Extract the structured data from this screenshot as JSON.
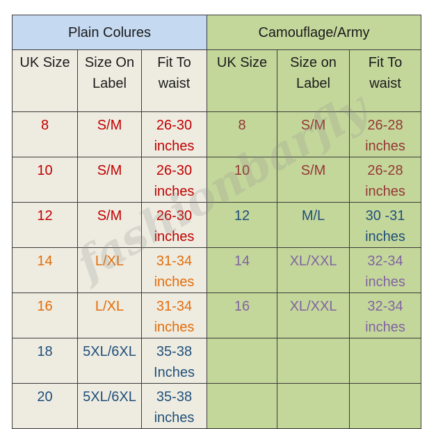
{
  "watermark": "fashionbarfly",
  "sections": {
    "plain": "Plain Colures",
    "camo": "Camouflage/Army"
  },
  "headers": {
    "plain": {
      "uk_size": "UK Size",
      "size_label": "Size On Label",
      "fit_waist": "Fit To waist"
    },
    "camo": {
      "uk_size": "UK Size",
      "size_label": "Size on Label",
      "fit_waist": "Fit To waist"
    }
  },
  "colors": {
    "plain_header_bg": "#c5d9f1",
    "camo_bg": "#c4d79b",
    "plain_bg": "#eeece1",
    "red": "#c00000",
    "brown": "#953735",
    "blue": "#1f4e79",
    "orange": "#e46c0a",
    "purple": "#8064a2"
  },
  "rows": [
    {
      "plain": {
        "uk": "8",
        "label": "S/M",
        "fit": "26-30 inches"
      },
      "camo": {
        "uk": "8",
        "label": "S/M",
        "fit": "26-28 inches"
      }
    },
    {
      "plain": {
        "uk": "10",
        "label": "S/M",
        "fit": "26-30 inches"
      },
      "camo": {
        "uk": "10",
        "label": "S/M",
        "fit": "26-28 inches"
      }
    },
    {
      "plain": {
        "uk": "12",
        "label": "S/M",
        "fit": "26-30 inches"
      },
      "camo": {
        "uk": "12",
        "label": "M/L",
        "fit": "30 -31 inches"
      }
    },
    {
      "plain": {
        "uk": "14",
        "label": "L/XL",
        "fit": "31-34 inches"
      },
      "camo": {
        "uk": "14",
        "label": "XL/XXL",
        "fit": "32-34 inches"
      }
    },
    {
      "plain": {
        "uk": "16",
        "label": "L/XL",
        "fit": "31-34 inches"
      },
      "camo": {
        "uk": "16",
        "label": "XL/XXL",
        "fit": "32-34 inches"
      }
    },
    {
      "plain": {
        "uk": "18",
        "label": "5XL/6XL",
        "fit": "35-38 Inches"
      },
      "camo": {
        "uk": "",
        "label": "",
        "fit": ""
      }
    },
    {
      "plain": {
        "uk": "20",
        "label": "5XL/6XL",
        "fit": "35-38 inches"
      },
      "camo": {
        "uk": "",
        "label": "",
        "fit": ""
      }
    }
  ]
}
